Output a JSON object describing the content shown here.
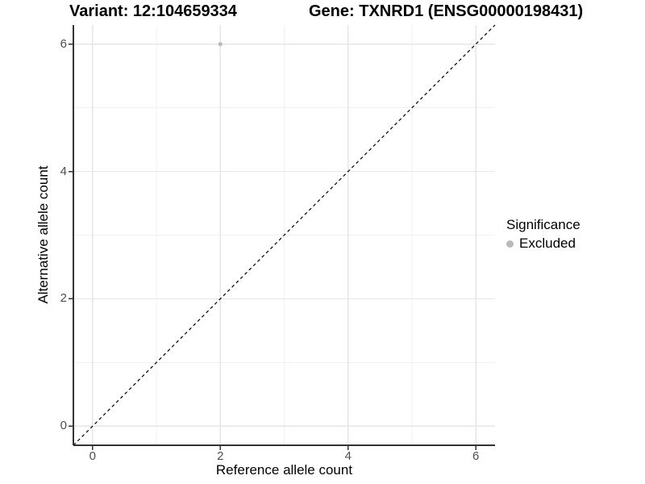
{
  "header": {
    "variant_title": "Variant: 12:104659334",
    "gene_title": "Gene: TXNRD1 (ENSG00000198431)"
  },
  "chart_data": {
    "type": "scatter",
    "xlabel": "Reference allele count",
    "ylabel": "Alternative allele count",
    "x_range": [
      -0.3,
      6.3
    ],
    "y_range": [
      -0.3,
      6.3
    ],
    "x_ticks": [
      0,
      2,
      4,
      6
    ],
    "y_ticks": [
      0,
      2,
      4,
      6
    ],
    "x_minor_ticks": [
      1,
      3,
      5
    ],
    "y_minor_ticks": [
      1,
      3,
      5
    ],
    "grid": "major+minor",
    "reference_line": {
      "kind": "identity",
      "from": [
        -0.3,
        -0.3
      ],
      "to": [
        6.3,
        6.3
      ],
      "style": "dashed",
      "color": "#000000"
    },
    "series": [
      {
        "name": "Excluded",
        "color": "#b9b9b9",
        "marker": "circle",
        "points": [
          {
            "x": 2,
            "y": 6
          }
        ]
      }
    ],
    "legend": {
      "title": "Significance",
      "position": "right",
      "items": [
        {
          "label": "Excluded",
          "color": "#b9b9b9",
          "marker": "circle"
        }
      ]
    }
  },
  "colors": {
    "background": "#ffffff",
    "grid_major": "#e6e6e6",
    "grid_minor": "#f1f1f1",
    "axis_line": "#333333",
    "tick_mark": "#333333",
    "tick_label": "#4d4d4d",
    "title": "#000000"
  }
}
